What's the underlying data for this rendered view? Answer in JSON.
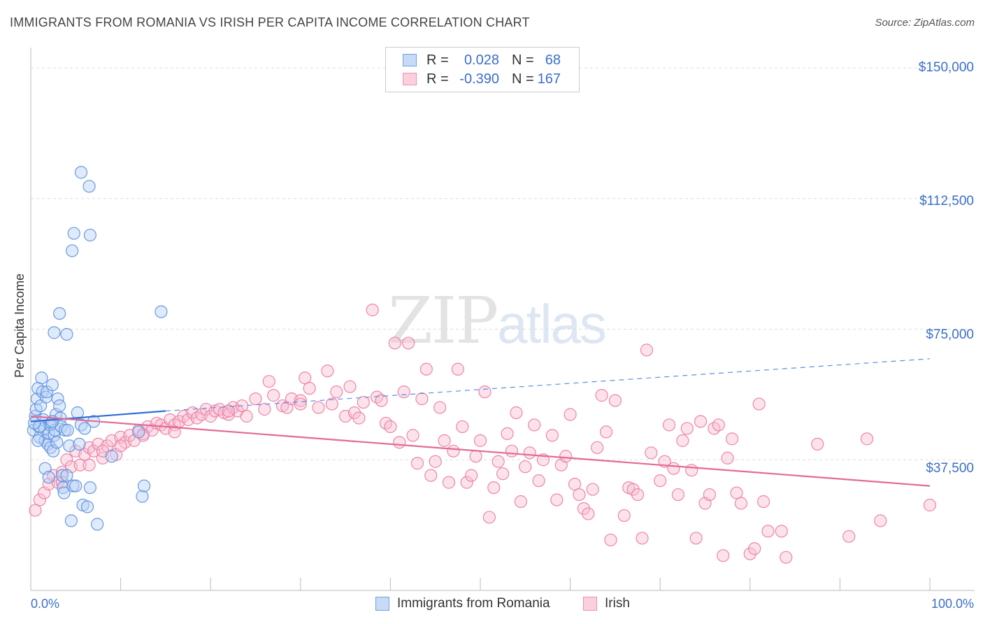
{
  "title": "IMMIGRANTS FROM ROMANIA VS IRISH PER CAPITA INCOME CORRELATION CHART",
  "source": "Source: ZipAtlas.com",
  "watermark": {
    "main": "ZIP",
    "sub": "atlas"
  },
  "legend": {
    "rows": [
      {
        "r_label": "R =",
        "r_value": "0.028",
        "n_label": "N =",
        "n_value": "68",
        "color": "#6fa0e6",
        "fill": "#c7dbf6"
      },
      {
        "r_label": "R =",
        "r_value": "-0.390",
        "n_label": "N =",
        "n_value": "167",
        "color": "#ef8fb0",
        "fill": "#fad0df"
      }
    ]
  },
  "bottom_legend": [
    {
      "label": "Immigrants from Romania",
      "color": "#6fa0e6",
      "fill": "#c7dbf6"
    },
    {
      "label": "Irish",
      "color": "#ef8fb0",
      "fill": "#fad0df"
    }
  ],
  "y_axis_title": "Per Capita Income",
  "x_ticks": {
    "left": "0.0%",
    "right": "100.0%"
  },
  "y_ticks": [
    "$150,000",
    "$112,500",
    "$75,000",
    "$37,500"
  ],
  "chart_data": {
    "type": "scatter",
    "xlabel": "",
    "ylabel": "Per Capita Income",
    "xlim": [
      0,
      100
    ],
    "ylim": [
      0,
      157500
    ],
    "y_tick_values": [
      150000,
      112500,
      75000,
      37500
    ],
    "grid": true,
    "legend_position": "top-center",
    "series": [
      {
        "name": "Immigrants from Romania",
        "color": "#5b8fe0",
        "fill": "#b9d1f3",
        "r": 0.028,
        "n": 68,
        "trend": {
          "x": [
            0,
            15
          ],
          "y": [
            48500,
            51500
          ],
          "dashed_to": [
            100,
            66500
          ]
        },
        "points": [
          [
            0.3,
            46000
          ],
          [
            0.5,
            50000
          ],
          [
            0.6,
            52000
          ],
          [
            0.7,
            55000
          ],
          [
            0.8,
            58000
          ],
          [
            0.9,
            47000
          ],
          [
            1.0,
            44000
          ],
          [
            1.1,
            53000
          ],
          [
            1.2,
            61000
          ],
          [
            1.3,
            57000
          ],
          [
            1.4,
            49000
          ],
          [
            1.5,
            46500
          ],
          [
            1.6,
            43000
          ],
          [
            1.7,
            55500
          ],
          [
            1.8,
            57000
          ],
          [
            1.9,
            42000
          ],
          [
            2.0,
            45000
          ],
          [
            2.1,
            47500
          ],
          [
            2.2,
            41000
          ],
          [
            2.3,
            48000
          ],
          [
            2.4,
            59000
          ],
          [
            2.5,
            40000
          ],
          [
            2.6,
            44500
          ],
          [
            2.7,
            46000
          ],
          [
            2.8,
            50500
          ],
          [
            2.9,
            42500
          ],
          [
            3.0,
            55000
          ],
          [
            3.2,
            53000
          ],
          [
            3.3,
            49500
          ],
          [
            3.4,
            47000
          ],
          [
            3.5,
            33000
          ],
          [
            3.6,
            29500
          ],
          [
            3.7,
            28000
          ],
          [
            3.8,
            46000
          ],
          [
            4.0,
            33000
          ],
          [
            4.1,
            46000
          ],
          [
            4.3,
            41500
          ],
          [
            4.5,
            20000
          ],
          [
            4.7,
            30000
          ],
          [
            5.0,
            30000
          ],
          [
            5.2,
            51000
          ],
          [
            5.4,
            42000
          ],
          [
            5.6,
            47500
          ],
          [
            5.8,
            24500
          ],
          [
            6.0,
            46500
          ],
          [
            6.3,
            24000
          ],
          [
            6.6,
            29500
          ],
          [
            7.0,
            48500
          ],
          [
            7.4,
            19000
          ],
          [
            2.6,
            74000
          ],
          [
            3.2,
            79500
          ],
          [
            4.0,
            73500
          ],
          [
            4.6,
            97500
          ],
          [
            4.8,
            102500
          ],
          [
            5.6,
            120000
          ],
          [
            6.5,
            116000
          ],
          [
            6.6,
            102000
          ],
          [
            9.0,
            38500
          ],
          [
            12.0,
            45500
          ],
          [
            12.4,
            27000
          ],
          [
            12.6,
            30000
          ],
          [
            14.5,
            80000
          ],
          [
            1.0,
            47000
          ],
          [
            1.6,
            35000
          ],
          [
            0.4,
            48000
          ],
          [
            2.0,
            32500
          ],
          [
            2.4,
            48500
          ],
          [
            0.8,
            43000
          ]
        ]
      },
      {
        "name": "Irish",
        "color": "#ec7aa0",
        "fill": "#f7bfd3",
        "r": -0.39,
        "n": 167,
        "trend": {
          "x": [
            0,
            100
          ],
          "y": [
            50000,
            30000
          ]
        },
        "points": [
          [
            0.5,
            23000
          ],
          [
            1.0,
            26000
          ],
          [
            1.5,
            28000
          ],
          [
            2.0,
            30500
          ],
          [
            2.5,
            33000
          ],
          [
            3.0,
            31000
          ],
          [
            3.5,
            34000
          ],
          [
            4.0,
            37500
          ],
          [
            4.5,
            35500
          ],
          [
            5.0,
            40000
          ],
          [
            5.5,
            36000
          ],
          [
            6.0,
            39000
          ],
          [
            6.5,
            41000
          ],
          [
            7.0,
            40000
          ],
          [
            7.5,
            42000
          ],
          [
            8.0,
            38000
          ],
          [
            8.5,
            41500
          ],
          [
            9.0,
            43000
          ],
          [
            9.5,
            39000
          ],
          [
            10.0,
            44000
          ],
          [
            10.5,
            42500
          ],
          [
            11.0,
            44500
          ],
          [
            11.5,
            43000
          ],
          [
            12.0,
            46000
          ],
          [
            12.5,
            45000
          ],
          [
            13.0,
            47000
          ],
          [
            13.5,
            46000
          ],
          [
            14.0,
            48000
          ],
          [
            14.5,
            47500
          ],
          [
            15.0,
            46500
          ],
          [
            15.5,
            49000
          ],
          [
            16.0,
            47500
          ],
          [
            16.5,
            48500
          ],
          [
            17.0,
            50000
          ],
          [
            17.5,
            49000
          ],
          [
            18.0,
            51000
          ],
          [
            18.5,
            49500
          ],
          [
            19.0,
            50500
          ],
          [
            19.5,
            52000
          ],
          [
            20.0,
            50000
          ],
          [
            20.5,
            51500
          ],
          [
            21.0,
            52000
          ],
          [
            21.5,
            51000
          ],
          [
            22.0,
            50500
          ],
          [
            22.5,
            52500
          ],
          [
            23.0,
            51500
          ],
          [
            23.5,
            53000
          ],
          [
            24.0,
            50000
          ],
          [
            25.0,
            55000
          ],
          [
            26.0,
            52000
          ],
          [
            26.5,
            60000
          ],
          [
            27.0,
            56000
          ],
          [
            28.0,
            53000
          ],
          [
            28.5,
            52500
          ],
          [
            29.0,
            55000
          ],
          [
            30.0,
            54500
          ],
          [
            30.5,
            61000
          ],
          [
            31.0,
            58000
          ],
          [
            32.0,
            52500
          ],
          [
            33.0,
            63000
          ],
          [
            33.5,
            53500
          ],
          [
            34.0,
            57000
          ],
          [
            35.0,
            50000
          ],
          [
            35.5,
            58500
          ],
          [
            36.0,
            51000
          ],
          [
            36.5,
            49500
          ],
          [
            37.0,
            54000
          ],
          [
            38.0,
            80500
          ],
          [
            38.5,
            55500
          ],
          [
            39.0,
            54500
          ],
          [
            39.5,
            48000
          ],
          [
            40.0,
            47000
          ],
          [
            40.5,
            71000
          ],
          [
            41.0,
            42500
          ],
          [
            41.5,
            57000
          ],
          [
            42.0,
            71000
          ],
          [
            42.5,
            44500
          ],
          [
            43.0,
            36500
          ],
          [
            43.5,
            55000
          ],
          [
            44.0,
            63500
          ],
          [
            44.5,
            33000
          ],
          [
            45.0,
            37000
          ],
          [
            45.5,
            52500
          ],
          [
            46.0,
            43000
          ],
          [
            46.5,
            31000
          ],
          [
            47.0,
            40000
          ],
          [
            47.5,
            63500
          ],
          [
            48.0,
            47000
          ],
          [
            48.5,
            31000
          ],
          [
            49.0,
            33000
          ],
          [
            49.5,
            38500
          ],
          [
            50.0,
            43000
          ],
          [
            50.5,
            57000
          ],
          [
            51.0,
            21000
          ],
          [
            51.5,
            29500
          ],
          [
            52.0,
            37000
          ],
          [
            52.5,
            33500
          ],
          [
            53.0,
            45000
          ],
          [
            53.5,
            40000
          ],
          [
            54.0,
            51000
          ],
          [
            54.5,
            25500
          ],
          [
            55.0,
            35500
          ],
          [
            55.5,
            39500
          ],
          [
            56.0,
            47500
          ],
          [
            56.5,
            31500
          ],
          [
            57.0,
            37500
          ],
          [
            58.0,
            44500
          ],
          [
            58.5,
            26000
          ],
          [
            59.0,
            36000
          ],
          [
            59.5,
            38500
          ],
          [
            60.0,
            50500
          ],
          [
            60.5,
            30500
          ],
          [
            61.0,
            27500
          ],
          [
            61.5,
            23500
          ],
          [
            62.0,
            22000
          ],
          [
            62.5,
            29000
          ],
          [
            63.0,
            41000
          ],
          [
            63.5,
            56000
          ],
          [
            64.0,
            45500
          ],
          [
            64.5,
            14500
          ],
          [
            65.0,
            54500
          ],
          [
            66.0,
            21500
          ],
          [
            66.5,
            29500
          ],
          [
            67.0,
            29000
          ],
          [
            67.5,
            27500
          ],
          [
            68.0,
            15000
          ],
          [
            69.0,
            39500
          ],
          [
            70.0,
            31500
          ],
          [
            70.5,
            37000
          ],
          [
            71.0,
            47500
          ],
          [
            71.5,
            35000
          ],
          [
            72.0,
            27500
          ],
          [
            72.5,
            43000
          ],
          [
            73.0,
            46500
          ],
          [
            73.5,
            34500
          ],
          [
            74.0,
            15000
          ],
          [
            74.5,
            48500
          ],
          [
            75.0,
            25000
          ],
          [
            75.5,
            27500
          ],
          [
            76.0,
            46500
          ],
          [
            76.5,
            47500
          ],
          [
            77.0,
            10000
          ],
          [
            77.5,
            38000
          ],
          [
            78.0,
            43500
          ],
          [
            78.5,
            28000
          ],
          [
            79.0,
            25000
          ],
          [
            80.0,
            10500
          ],
          [
            80.5,
            12000
          ],
          [
            81.0,
            53500
          ],
          [
            81.5,
            25500
          ],
          [
            82.0,
            17000
          ],
          [
            83.5,
            17000
          ],
          [
            84.0,
            9500
          ],
          [
            87.5,
            42000
          ],
          [
            91.0,
            15500
          ],
          [
            93.0,
            43500
          ],
          [
            94.5,
            20000
          ],
          [
            100.0,
            24500
          ],
          [
            68.5,
            69000
          ],
          [
            30.0,
            53500
          ],
          [
            22.0,
            51500
          ],
          [
            16.0,
            45500
          ],
          [
            12.5,
            44500
          ],
          [
            10.0,
            41500
          ],
          [
            8.0,
            40000
          ],
          [
            3.5,
            31000
          ],
          [
            6.5,
            36000
          ]
        ]
      }
    ]
  }
}
